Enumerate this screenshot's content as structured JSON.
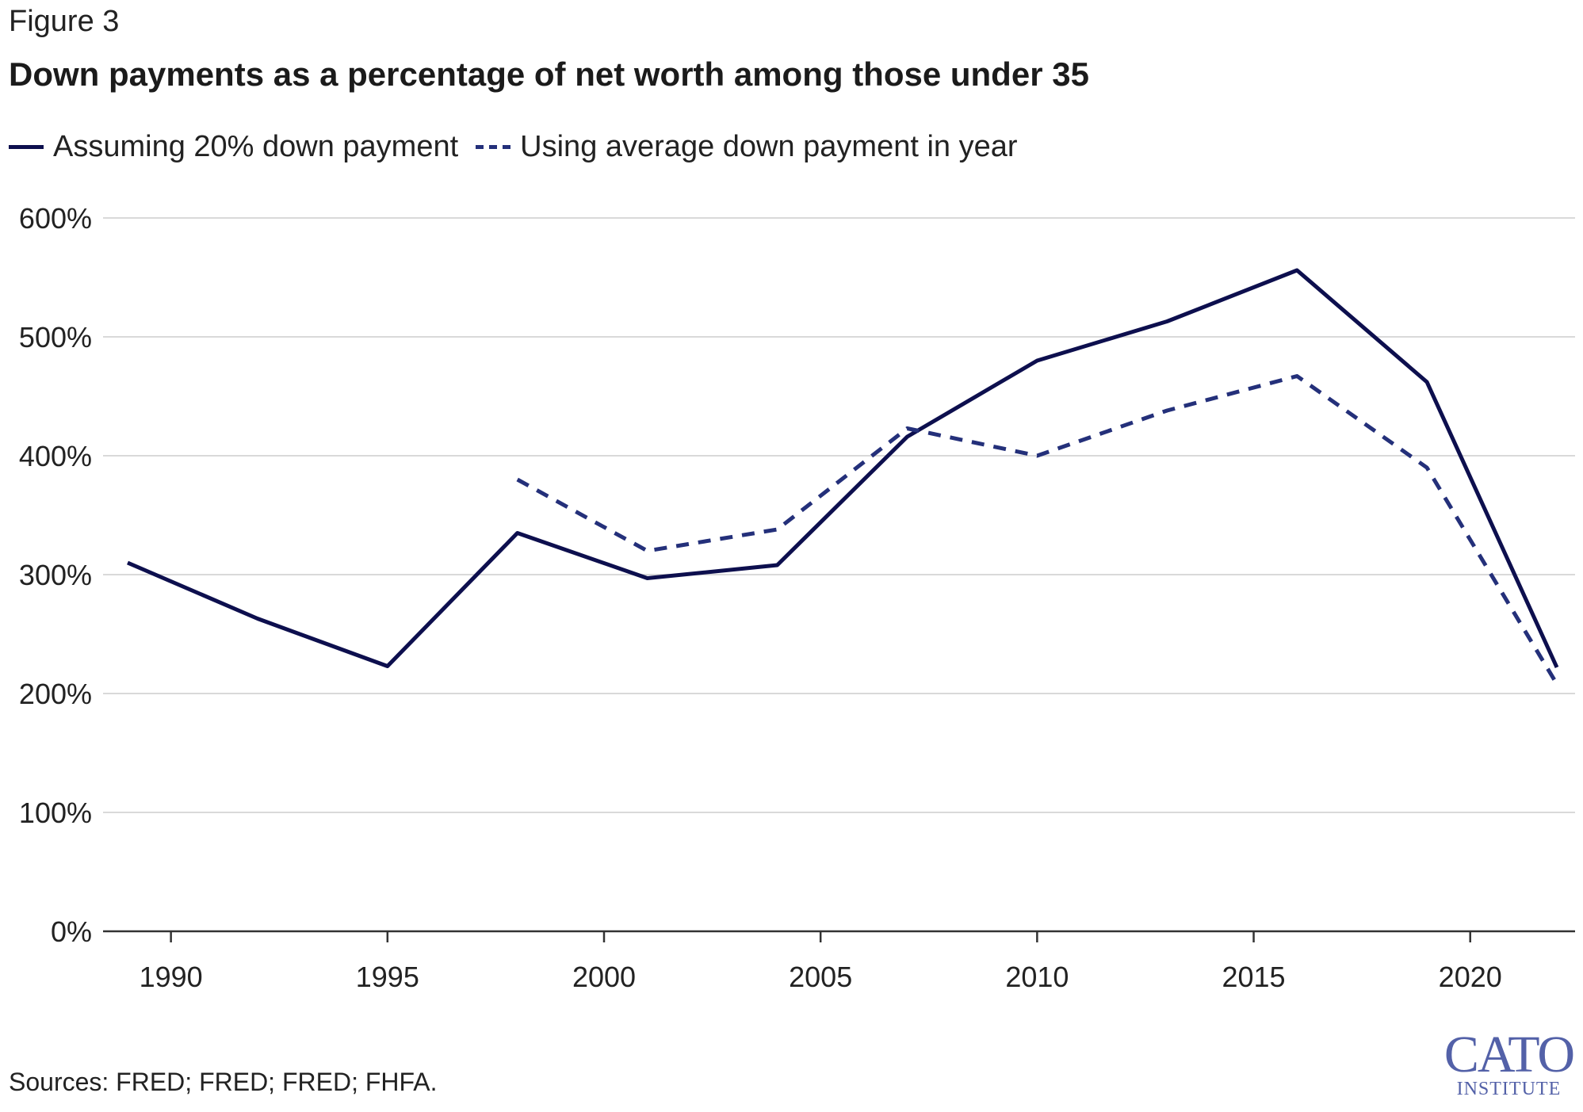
{
  "figure_label": "Figure 3",
  "logo": {
    "main": "CATO",
    "sub": "INSTITUTE"
  },
  "source_note": "Sources: FRED; FRED; FRED; FHFA.",
  "colors": {
    "series1": "#0d0f4e",
    "series2": "#24307a",
    "grid": "#d9d9d9",
    "axis": "#333333",
    "logo": "#5361a8"
  },
  "chart_data": {
    "type": "line",
    "title": "Down payments as a percentage of net worth among those under 35",
    "xlabel": "",
    "ylabel": "",
    "xlim": [
      1989,
      2022
    ],
    "ylim": [
      0,
      600
    ],
    "x_ticks": [
      1990,
      1995,
      2000,
      2005,
      2010,
      2015,
      2020
    ],
    "y_ticks": [
      0,
      100,
      200,
      300,
      400,
      500,
      600
    ],
    "y_tick_labels": [
      "0%",
      "100%",
      "200%",
      "300%",
      "400%",
      "500%",
      "600%"
    ],
    "grid": "horizontal",
    "legend_position": "top-left",
    "series": [
      {
        "name": "Assuming 20% down payment",
        "style": "solid",
        "x": [
          1989,
          1992,
          1995,
          1998,
          2001,
          2004,
          2007,
          2010,
          2013,
          2016,
          2019,
          2022
        ],
        "values": [
          310,
          263,
          223,
          335,
          297,
          308,
          416,
          480,
          513,
          556,
          462,
          222
        ]
      },
      {
        "name": "Using average down payment in year",
        "style": "dashed",
        "x": [
          1998,
          2001,
          2004,
          2007,
          2010,
          2013,
          2016,
          2019,
          2022
        ],
        "values": [
          380,
          320,
          338,
          423,
          400,
          438,
          467,
          390,
          208
        ]
      }
    ]
  }
}
